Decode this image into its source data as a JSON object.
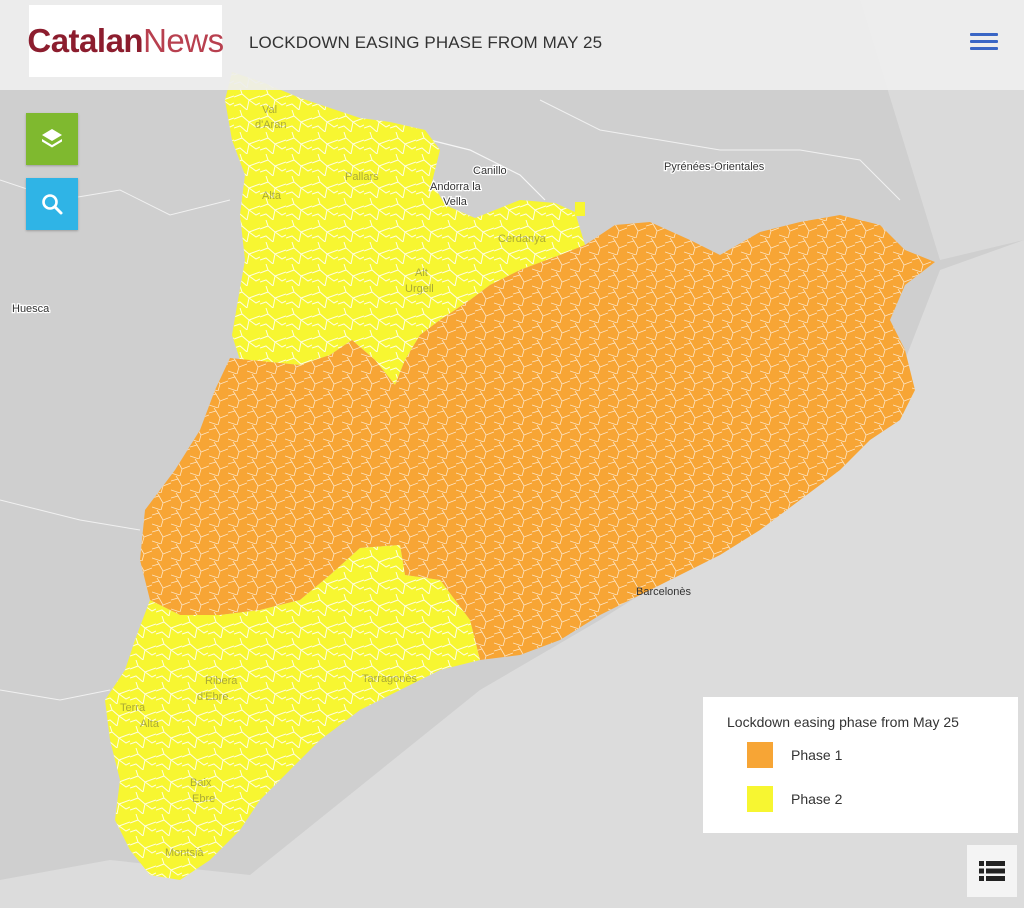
{
  "header": {
    "logo_part1": "Catalan",
    "logo_part2": "News",
    "title": "LOCKDOWN EASING PHASE FROM MAY 25"
  },
  "controls": {
    "layers_icon": "layers-icon",
    "search_icon": "search-icon",
    "menu_icon": "hamburger-icon",
    "list_icon": "list-icon"
  },
  "legend": {
    "title": "Lockdown easing phase from May 25",
    "items": [
      {
        "label": "Phase 1",
        "color": "#f7a535"
      },
      {
        "label": "Phase 2",
        "color": "#f7f631"
      }
    ]
  },
  "map": {
    "colors": {
      "phase1": "#f7a535",
      "phase2": "#f7f631",
      "land": "#cfcfcf",
      "sea": "#d9d9d9"
    },
    "outside_labels": {
      "huesca": "Huesca",
      "pyrenees": "Pyrénées-Orientales",
      "canillo": "Canillo",
      "andorra": "Andorra la",
      "andorra2": "Vella"
    },
    "region_labels": {
      "val": "Val",
      "daran": "d'Aran",
      "alta": "Alta",
      "pallars": "Pallars",
      "alt": "Alt",
      "urgell": "Urgell",
      "cerdanya": "Cerdanya",
      "barcelones": "Barcelonès",
      "terra": "Terra",
      "alta2": "Alta",
      "ribera": "Ribera",
      "debre": "d'Ebre",
      "baix": "Baix",
      "ebre": "Ebre",
      "montsia": "Montsià",
      "tarragones": "Tarragonès"
    }
  }
}
